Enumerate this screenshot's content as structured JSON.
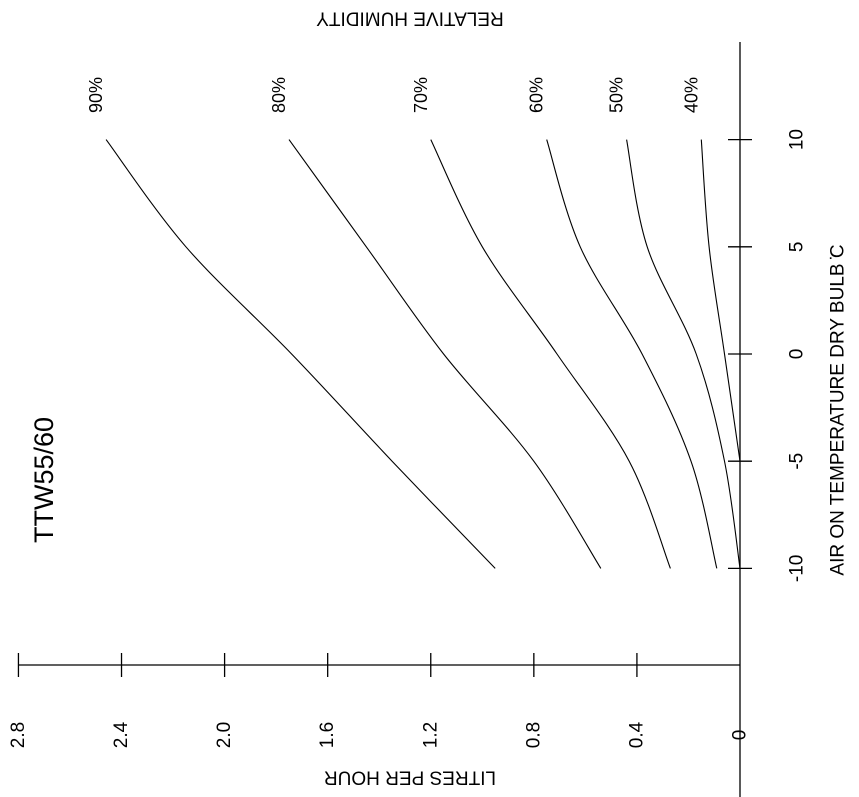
{
  "chart_data": {
    "type": "line",
    "title": "TTW55/60",
    "xlabel": "AIR ON TEMPERATURE DRY BULB  ̇C",
    "ylabel": "LITRES PER HOUR",
    "legend_title": "RELATIVE HUMIDITY",
    "x_ticks": [
      "-10",
      "-5",
      "0",
      "5",
      "10"
    ],
    "y_ticks": [
      "0",
      "0.4",
      "0.8",
      "1.2",
      "1.6",
      "2.0",
      "2.4",
      "2.8"
    ],
    "xlim": [
      -14.3,
      14.2
    ],
    "ylim": [
      0,
      2.8
    ],
    "grid": false,
    "series": [
      {
        "name": "90%",
        "x": [
          -10,
          -5,
          0,
          5,
          10
        ],
        "y": [
          0.95,
          1.35,
          1.74,
          2.15,
          2.46
        ]
      },
      {
        "name": "80%",
        "x": [
          -10,
          -5,
          0,
          5,
          10
        ],
        "y": [
          0.54,
          0.8,
          1.15,
          1.45,
          1.75
        ]
      },
      {
        "name": "70%",
        "x": [
          -10,
          -5,
          0,
          5,
          10
        ],
        "y": [
          0.27,
          0.43,
          0.71,
          1.0,
          1.2
        ]
      },
      {
        "name": "60%",
        "x": [
          -10,
          -5,
          0,
          5,
          10
        ],
        "y": [
          0.09,
          0.19,
          0.38,
          0.62,
          0.75
        ]
      },
      {
        "name": "50%",
        "x": [
          -10,
          -5,
          0,
          5,
          10
        ],
        "y": [
          0.0,
          0.06,
          0.17,
          0.36,
          0.44
        ]
      },
      {
        "name": "40%",
        "x": [
          -5,
          0,
          5,
          10
        ],
        "y": [
          0.0,
          0.06,
          0.12,
          0.15
        ]
      }
    ]
  }
}
